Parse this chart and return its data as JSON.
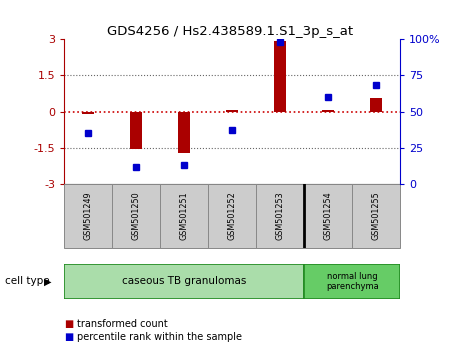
{
  "title": "GDS4256 / Hs2.438589.1.S1_3p_s_at",
  "samples": [
    "GSM501249",
    "GSM501250",
    "GSM501251",
    "GSM501252",
    "GSM501253",
    "GSM501254",
    "GSM501255"
  ],
  "transformed_counts": [
    -0.1,
    -1.55,
    -1.7,
    0.05,
    2.9,
    0.08,
    0.55
  ],
  "percentile_ranks": [
    35,
    12,
    13,
    37,
    98,
    60,
    68
  ],
  "ylim_left": [
    -3,
    3
  ],
  "ylim_right": [
    0,
    100
  ],
  "yticks_left": [
    -3,
    -1.5,
    0,
    1.5,
    3
  ],
  "yticks_left_labels": [
    "-3",
    "-1.5",
    "0",
    "1.5",
    "3"
  ],
  "yticks_right": [
    0,
    25,
    50,
    75,
    100
  ],
  "yticks_right_labels": [
    "0",
    "25",
    "50",
    "75",
    "100%"
  ],
  "bar_color": "#aa0000",
  "dot_color": "#0000cc",
  "group1_n": 5,
  "group2_n": 2,
  "group1_label": "caseous TB granulomas",
  "group2_label": "normal lung\nparenchyma",
  "group1_color": "#aaddaa",
  "group2_color": "#66cc66",
  "cell_type_label": "cell type",
  "legend1_label": "transformed count",
  "legend2_label": "percentile rank within the sample",
  "bg_color": "#ffffff",
  "hline_color": "#cc0000",
  "dot_line_color": "#666666",
  "sample_cell_color": "#cccccc",
  "sample_border_color": "#888888",
  "bar_width": 0.25
}
